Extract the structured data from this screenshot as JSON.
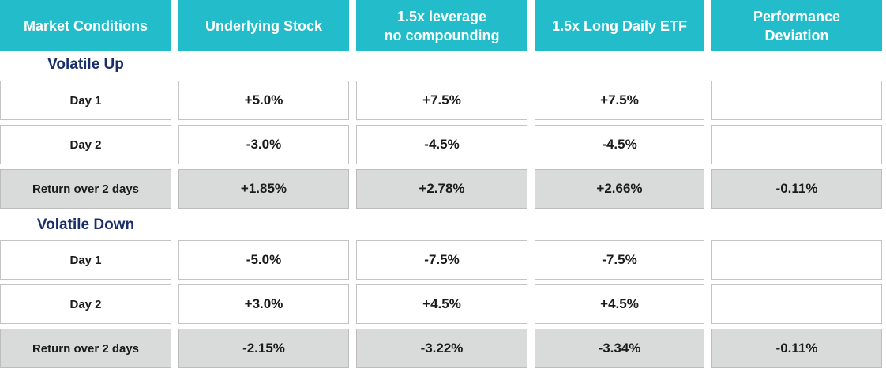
{
  "header": {
    "col0": "Market Conditions",
    "col1": "Underlying Stock",
    "col2_line1": "1.5x leverage",
    "col2_line2": "no compounding",
    "col3": "1.5x Long Daily ETF",
    "col4_line1": "Performance",
    "col4_line2": "Deviation"
  },
  "sections": [
    {
      "title": "Volatile Up",
      "rows": [
        {
          "label": "Day 1",
          "stock": "+5.0%",
          "lev": "+7.5%",
          "etf": "+7.5%",
          "dev": ""
        },
        {
          "label": "Day 2",
          "stock": "-3.0%",
          "lev": "-4.5%",
          "etf": "-4.5%",
          "dev": ""
        },
        {
          "label": "Return over 2 days",
          "stock": "+1.85%",
          "lev": "+2.78%",
          "etf": "+2.66%",
          "dev": "-0.11%"
        }
      ]
    },
    {
      "title": "Volatile Down",
      "rows": [
        {
          "label": "Day 1",
          "stock": "-5.0%",
          "lev": "-7.5%",
          "etf": "-7.5%",
          "dev": ""
        },
        {
          "label": "Day 2",
          "stock": "+3.0%",
          "lev": "+4.5%",
          "etf": "+4.5%",
          "dev": ""
        },
        {
          "label": "Return over 2 days",
          "stock": "-2.15%",
          "lev": "-3.22%",
          "etf": "-3.34%",
          "dev": "-0.11%"
        }
      ]
    }
  ],
  "colors": {
    "header_bg": "#22bccb",
    "section_title": "#1a2f6a",
    "summary_row_bg": "#d9dbdb"
  }
}
